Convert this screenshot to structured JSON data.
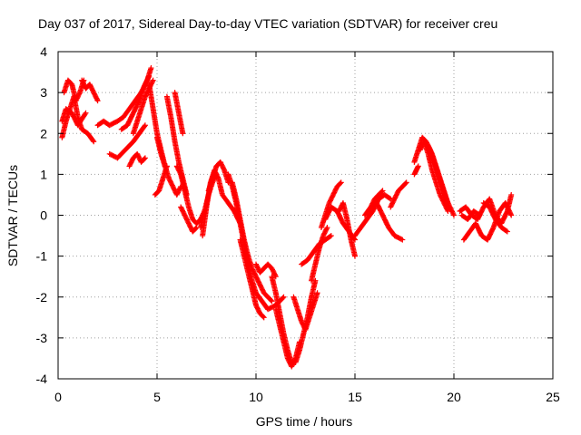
{
  "chart_data": {
    "type": "scatter",
    "title": "Day 037 of 2017, Sidereal Day-to-day VTEC variation (SDTVAR) for receiver creu",
    "xlabel": "GPS time / hours",
    "ylabel": "SDTVAR / TECUs",
    "xlim": [
      0,
      25
    ],
    "ylim": [
      -4,
      4
    ],
    "xticks": [
      0,
      5,
      10,
      15,
      20,
      25
    ],
    "yticks": [
      -4,
      -3,
      -2,
      -1,
      0,
      1,
      2,
      3,
      4
    ],
    "grid": true,
    "marker": "+",
    "series": [
      {
        "name": "SDTVAR",
        "color": "#ff0000",
        "tracks": [
          {
            "t": [
              0.2,
              0.4,
              0.6,
              0.8,
              1.0,
              1.2,
              1.5,
              1.8
            ],
            "v": [
              1.9,
              2.3,
              2.6,
              2.9,
              2.4,
              2.1,
              2.0,
              1.8
            ]
          },
          {
            "t": [
              0.3,
              0.5,
              0.7,
              0.9,
              1.1,
              1.3
            ],
            "v": [
              3.0,
              3.3,
              3.2,
              2.8,
              3.0,
              3.3
            ]
          },
          {
            "t": [
              0.2,
              0.4,
              0.7,
              1.0,
              1.4
            ],
            "v": [
              2.3,
              2.6,
              2.5,
              2.2,
              2.5
            ]
          },
          {
            "t": [
              1.2,
              1.4,
              1.6,
              1.8,
              2.0
            ],
            "v": [
              3.3,
              3.1,
              3.2,
              3.0,
              2.8
            ]
          },
          {
            "t": [
              2.0,
              2.3,
              2.6,
              3.0,
              3.3,
              3.6,
              3.9,
              4.2,
              4.5,
              4.7
            ],
            "v": [
              2.2,
              2.3,
              2.2,
              2.3,
              2.4,
              2.6,
              2.8,
              3.0,
              3.3,
              3.6
            ]
          },
          {
            "t": [
              2.6,
              3.0,
              3.4,
              3.8,
              4.1,
              4.4
            ],
            "v": [
              1.5,
              1.4,
              1.6,
              1.8,
              2.0,
              2.2
            ]
          },
          {
            "t": [
              3.2,
              3.5,
              3.8,
              4.1,
              4.4,
              4.6
            ],
            "v": [
              2.1,
              2.2,
              2.5,
              2.8,
              3.2,
              3.4
            ]
          },
          {
            "t": [
              3.6,
              3.8,
              4.0,
              4.2,
              4.4
            ],
            "v": [
              1.2,
              1.4,
              1.5,
              1.3,
              1.4
            ]
          },
          {
            "t": [
              3.8,
              4.0,
              4.2,
              4.4,
              4.6,
              4.8
            ],
            "v": [
              2.0,
              2.3,
              2.6,
              2.9,
              3.1,
              3.3
            ]
          },
          {
            "t": [
              4.6,
              4.8,
              5.0,
              5.2,
              5.4
            ],
            "v": [
              3.2,
              2.6,
              2.0,
              1.6,
              1.2
            ]
          },
          {
            "t": [
              5.0,
              5.2,
              5.4,
              5.6,
              5.8,
              6.0,
              6.2
            ],
            "v": [
              1.9,
              1.5,
              1.2,
              0.9,
              0.7,
              0.5,
              0.7
            ]
          },
          {
            "t": [
              5.5,
              5.7,
              5.9,
              6.1,
              6.3,
              6.5
            ],
            "v": [
              2.9,
              2.4,
              1.8,
              1.3,
              0.9,
              0.5
            ]
          },
          {
            "t": [
              4.9,
              5.1,
              5.3,
              5.5
            ],
            "v": [
              0.5,
              0.6,
              0.9,
              1.2
            ]
          },
          {
            "t": [
              5.9,
              6.1,
              6.3
            ],
            "v": [
              3.0,
              2.5,
              2.0
            ]
          },
          {
            "t": [
              6.0,
              6.2,
              6.4,
              6.6,
              6.8,
              7.0,
              7.2,
              7.4
            ],
            "v": [
              1.2,
              1.0,
              0.6,
              0.2,
              -0.1,
              -0.2,
              -0.1,
              0.1
            ]
          },
          {
            "t": [
              6.2,
              6.4,
              6.6,
              6.8,
              7.0
            ],
            "v": [
              0.2,
              0.0,
              -0.2,
              -0.4,
              -0.3
            ]
          },
          {
            "t": [
              7.2,
              7.4,
              7.6,
              7.8,
              8.0
            ],
            "v": [
              -0.3,
              0.1,
              0.5,
              0.8,
              1.0
            ]
          },
          {
            "t": [
              7.3,
              7.5,
              7.7,
              7.9,
              8.1,
              8.3,
              8.6,
              8.9,
              9.2
            ],
            "v": [
              -0.5,
              0.2,
              0.8,
              1.1,
              0.9,
              0.5,
              0.3,
              0.1,
              -0.2
            ]
          },
          {
            "t": [
              7.6,
              7.8,
              8.0,
              8.2,
              8.4,
              8.6
            ],
            "v": [
              0.6,
              0.9,
              1.2,
              1.3,
              1.1,
              0.8
            ]
          },
          {
            "t": [
              8.6,
              8.8,
              9.0,
              9.2,
              9.4,
              9.6,
              9.8,
              10.0,
              10.3,
              10.6,
              11.0,
              11.4
            ],
            "v": [
              1.0,
              0.7,
              0.3,
              -0.2,
              -0.7,
              -1.2,
              -1.6,
              -1.9,
              -2.1,
              -2.3,
              -2.2,
              -2.0
            ]
          },
          {
            "t": [
              8.8,
              9.0,
              9.2,
              9.4,
              9.6,
              9.8,
              10.0,
              10.2,
              10.4,
              10.6,
              10.8
            ],
            "v": [
              0.8,
              0.4,
              -0.1,
              -0.6,
              -1.0,
              -1.3,
              -1.5,
              -1.7,
              -1.9,
              -2.0,
              -2.1
            ]
          },
          {
            "t": [
              9.2,
              9.4,
              9.6,
              9.8,
              10.0,
              10.2,
              10.4
            ],
            "v": [
              -0.6,
              -1.0,
              -1.4,
              -1.8,
              -2.2,
              -2.4,
              -2.5
            ]
          },
          {
            "t": [
              10.0,
              10.2,
              10.4,
              10.6,
              10.8,
              11.0
            ],
            "v": [
              -1.2,
              -1.4,
              -1.3,
              -1.2,
              -1.3,
              -1.5
            ]
          },
          {
            "t": [
              10.8,
              11.0,
              11.2,
              11.4,
              11.6,
              11.8,
              12.0,
              12.2,
              12.4,
              12.6,
              12.8,
              13.0
            ],
            "v": [
              -1.5,
              -1.9,
              -2.4,
              -2.9,
              -3.3,
              -3.6,
              -3.6,
              -3.3,
              -2.9,
              -2.5,
              -2.0,
              -1.6
            ]
          },
          {
            "t": [
              11.0,
              11.2,
              11.4,
              11.6,
              11.8,
              12.0,
              12.2
            ],
            "v": [
              -2.3,
              -2.7,
              -3.1,
              -3.5,
              -3.7,
              -3.5,
              -3.1
            ]
          },
          {
            "t": [
              11.9,
              12.1,
              12.3,
              12.5,
              12.7,
              12.9,
              13.1
            ],
            "v": [
              -2.0,
              -2.3,
              -2.6,
              -2.8,
              -2.5,
              -2.2,
              -1.9
            ]
          },
          {
            "t": [
              12.3,
              12.6,
              12.9,
              13.2,
              13.5,
              13.8
            ],
            "v": [
              -1.2,
              -1.1,
              -0.9,
              -0.7,
              -0.6,
              -0.5
            ]
          },
          {
            "t": [
              12.8,
              13.0,
              13.2,
              13.4,
              13.6
            ],
            "v": [
              -1.6,
              -1.2,
              -0.8,
              -0.5,
              -0.3
            ]
          },
          {
            "t": [
              13.3,
              13.5,
              13.7,
              13.9,
              14.1,
              14.3
            ],
            "v": [
              -0.3,
              0.0,
              0.3,
              0.5,
              0.7,
              0.8
            ]
          },
          {
            "t": [
              13.5,
              13.8,
              14.1,
              14.4,
              14.7,
              15.0
            ],
            "v": [
              -0.1,
              0.2,
              0.1,
              -0.2,
              -0.4,
              -0.6
            ]
          },
          {
            "t": [
              14.2,
              14.4,
              14.6,
              14.8,
              15.0
            ],
            "v": [
              0.1,
              0.3,
              -0.1,
              -0.6,
              -1.0
            ]
          },
          {
            "t": [
              15.0,
              15.3,
              15.6,
              15.9,
              16.2,
              16.5,
              16.8
            ],
            "v": [
              -0.5,
              -0.3,
              -0.1,
              0.1,
              0.4,
              0.5,
              0.4
            ]
          },
          {
            "t": [
              15.5,
              15.8,
              16.1,
              16.4,
              16.7,
              17.0,
              17.4
            ],
            "v": [
              0.0,
              0.2,
              0.3,
              0.0,
              -0.3,
              -0.5,
              -0.6
            ]
          },
          {
            "t": [
              15.8,
              16.0,
              16.2,
              16.4
            ],
            "v": [
              0.2,
              0.4,
              0.5,
              0.6
            ]
          },
          {
            "t": [
              16.8,
              17.0,
              17.2,
              17.4,
              17.6
            ],
            "v": [
              0.2,
              0.4,
              0.6,
              0.7,
              0.8
            ]
          },
          {
            "t": [
              18.0,
              18.2,
              18.4,
              18.6,
              18.8,
              19.0,
              19.2,
              19.4,
              19.6,
              19.8,
              20.0
            ],
            "v": [
              1.3,
              1.6,
              1.9,
              1.8,
              1.6,
              1.3,
              1.0,
              0.7,
              0.4,
              0.2,
              0.0
            ]
          },
          {
            "t": [
              18.3,
              18.5,
              18.7,
              18.9,
              19.1,
              19.3,
              19.5,
              19.7
            ],
            "v": [
              1.6,
              1.8,
              1.5,
              1.1,
              0.8,
              0.5,
              0.3,
              0.1
            ]
          },
          {
            "t": [
              18.7,
              18.9,
              19.1,
              19.3,
              19.5,
              19.7
            ],
            "v": [
              1.7,
              1.5,
              1.2,
              0.9,
              0.6,
              0.3
            ]
          },
          {
            "t": [
              18.0,
              18.1,
              18.2
            ],
            "v": [
              1.0,
              1.1,
              1.2
            ]
          },
          {
            "t": [
              20.3,
              20.6,
              20.9,
              21.2,
              21.5,
              21.8,
              22.1,
              22.4,
              22.7,
              22.9
            ],
            "v": [
              0.1,
              0.2,
              0.0,
              -0.1,
              0.2,
              0.4,
              0.0,
              -0.2,
              0.1,
              0.5
            ]
          },
          {
            "t": [
              20.5,
              20.8,
              21.1,
              21.4,
              21.7,
              22.0,
              22.3,
              22.6,
              22.9
            ],
            "v": [
              -0.6,
              -0.4,
              -0.2,
              -0.5,
              -0.6,
              -0.3,
              0.1,
              0.3,
              0.0
            ]
          },
          {
            "t": [
              20.4,
              20.7,
              21.0,
              21.3
            ],
            "v": [
              0.0,
              -0.1,
              0.1,
              0.0
            ]
          },
          {
            "t": [
              21.5,
              21.8,
              22.1,
              22.4,
              22.7
            ],
            "v": [
              0.3,
              0.2,
              -0.1,
              -0.3,
              -0.4
            ]
          }
        ]
      }
    ]
  }
}
